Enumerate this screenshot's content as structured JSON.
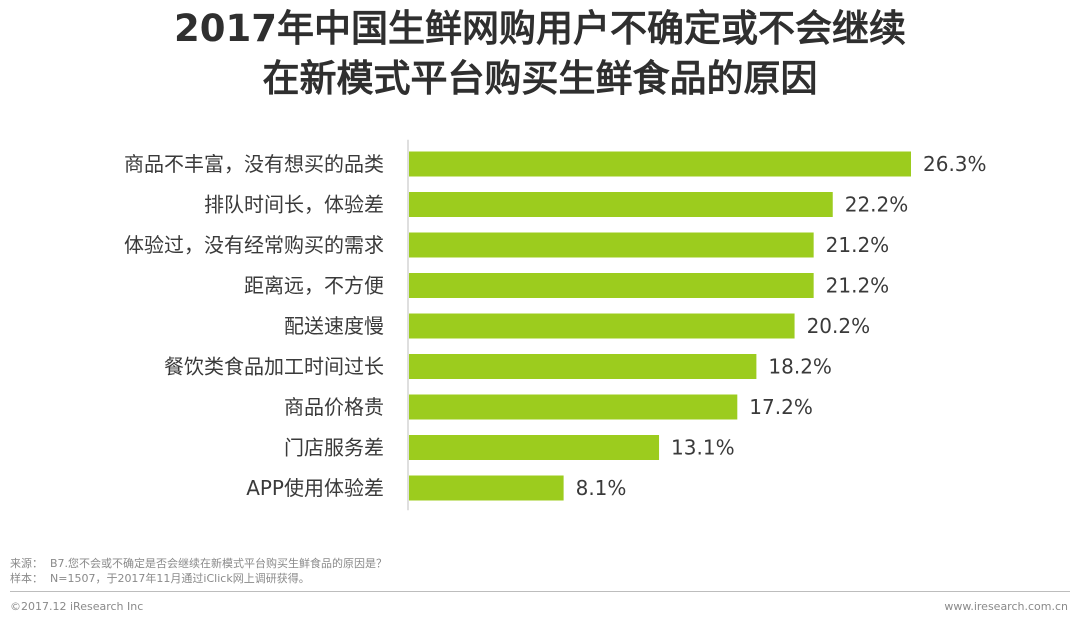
{
  "title": {
    "line1": "2017年中国生鲜网购用户不确定或不会继续",
    "line2": "在新模式平台购买生鲜食品的原因"
  },
  "chart_data": {
    "type": "bar",
    "orientation": "horizontal",
    "title": "2017年中国生鲜网购用户不确定或不会继续在新模式平台购买生鲜食品的原因",
    "categories": [
      "商品不丰富，没有想买的品类",
      "排队时间长，体验差",
      "体验过，没有经常购买的需求",
      "距离远，不方便",
      "配送速度慢",
      "餐饮类食品加工时间过长",
      "商品价格贵",
      "门店服务差",
      "APP使用体验差"
    ],
    "values": [
      26.3,
      22.2,
      21.2,
      21.2,
      20.2,
      18.2,
      17.2,
      13.1,
      8.1
    ],
    "value_labels": [
      "26.3%",
      "22.2%",
      "21.2%",
      "21.2%",
      "20.2%",
      "18.2%",
      "17.2%",
      "13.1%",
      "8.1%"
    ],
    "unit": "%",
    "xlim": [
      0,
      26.3
    ],
    "grid": false,
    "legend": "none",
    "bar_color": "#9ccc1e"
  },
  "footer": {
    "source_label": "来源：",
    "source_text": "B7.您不会或不确定是否会继续在新模式平台购买生鲜食品的原因是？",
    "sample_label": "样本：",
    "sample_text": "N=1507，于2017年11月通过iClick网上调研获得。",
    "copyright": "©2017.12 iResearch Inc",
    "website": "www.iresearch.com.cn"
  }
}
